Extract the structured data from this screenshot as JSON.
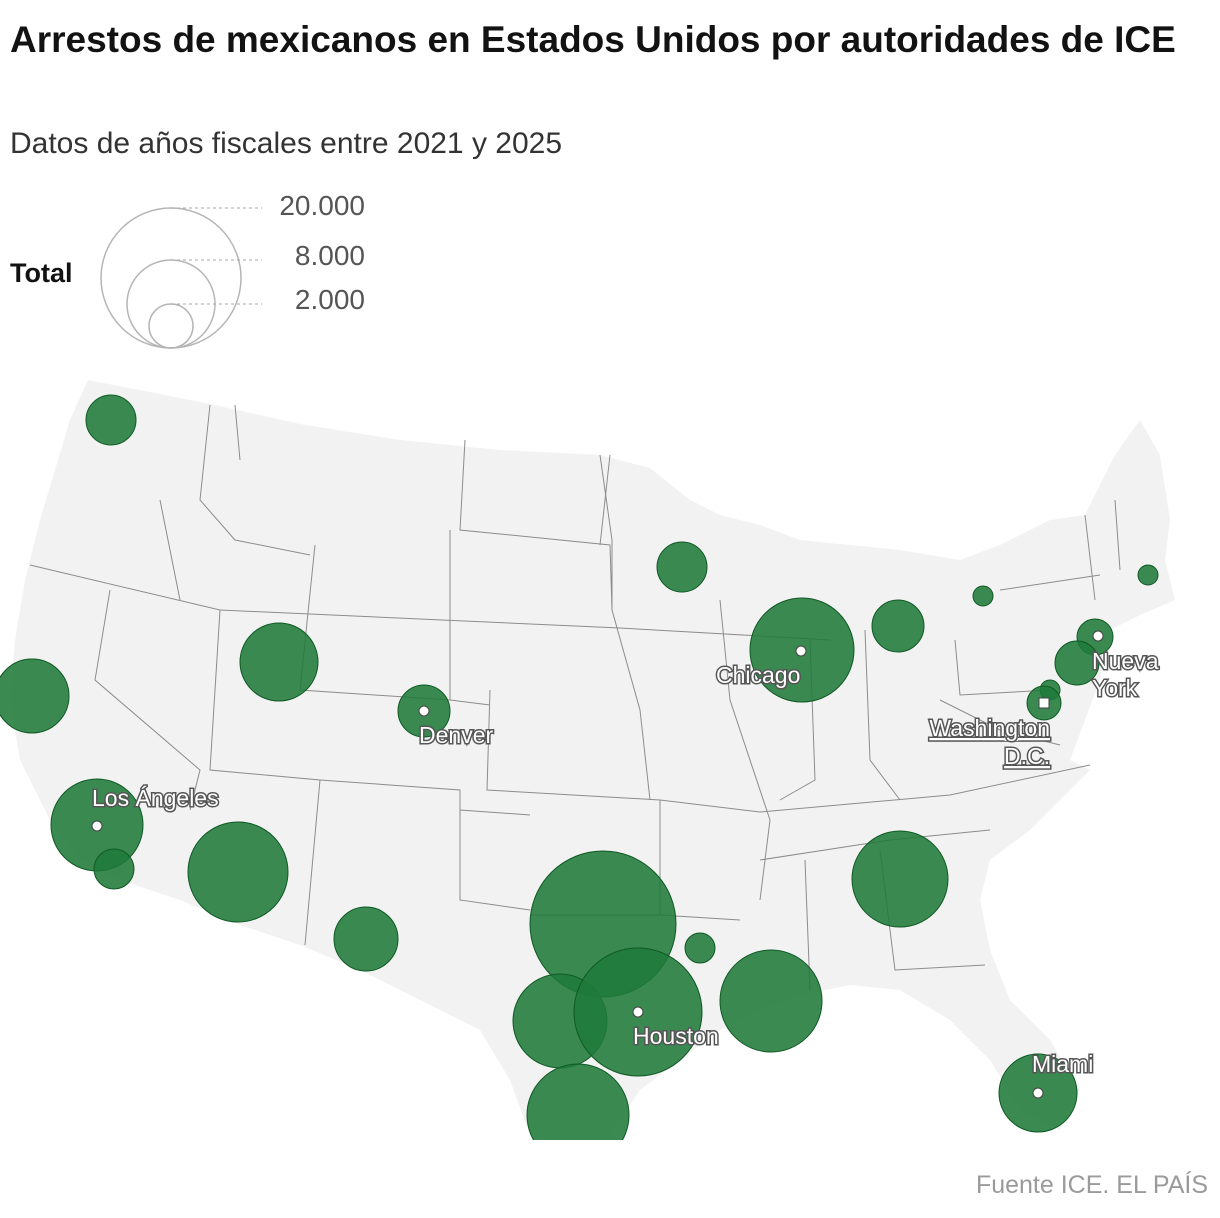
{
  "title": "Arrestos de mexicanos en Estados Unidos por autoridades de ICE",
  "subtitle": "Datos de años fiscales entre 2021 y 2025",
  "legend": {
    "label": "Total",
    "values": [
      "20.000",
      "8.000",
      "2.000"
    ]
  },
  "cities": [
    {
      "name": "Chicago",
      "lines": [
        "Chicago"
      ]
    },
    {
      "name": "Nueva York",
      "lines": [
        "Nueva",
        "York"
      ]
    },
    {
      "name": "Washington D.C.",
      "lines": [
        "Washington",
        "D.C."
      ]
    },
    {
      "name": "Denver",
      "lines": [
        "Denver"
      ]
    },
    {
      "name": "Los Ángeles",
      "lines": [
        "Los Ángeles"
      ]
    },
    {
      "name": "Houston",
      "lines": [
        "Houston"
      ]
    },
    {
      "name": "Miami",
      "lines": [
        "Miami"
      ]
    }
  ],
  "colors": {
    "bubble": "#1f7a3a",
    "bubble_stroke": "#0f5a24",
    "land": "#f2f2f2",
    "state_border": "#8c8c8c"
  },
  "source": "Fuente ICE. EL PAÍS"
}
